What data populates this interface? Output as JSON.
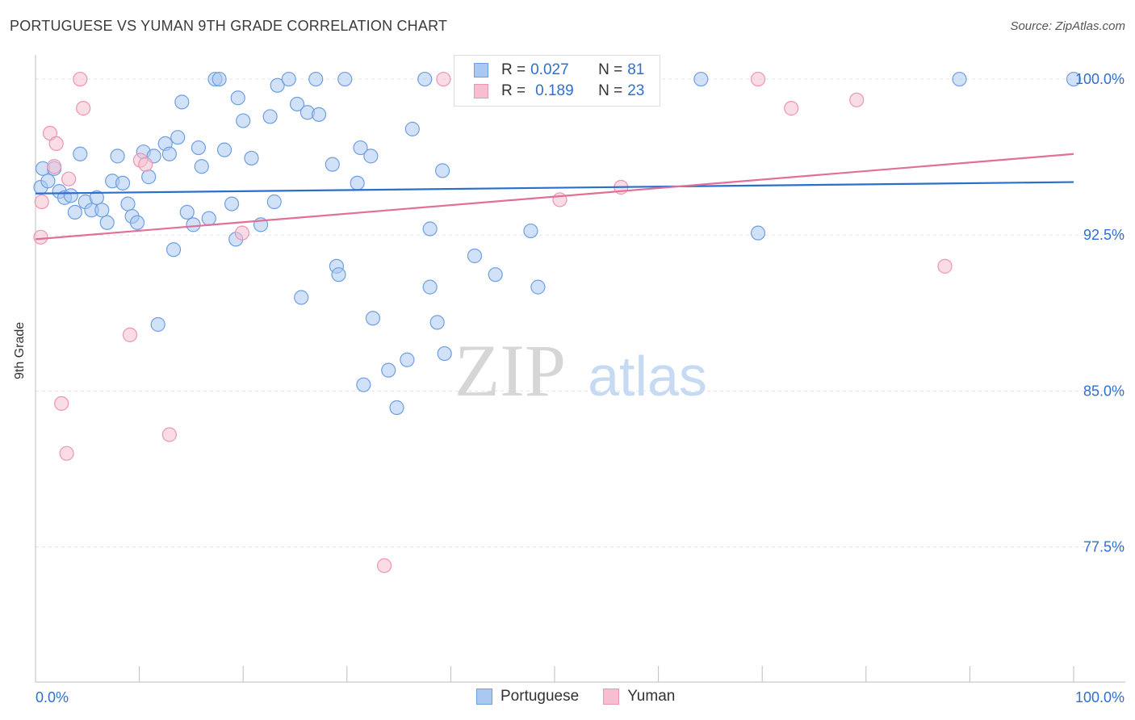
{
  "header": {
    "title": "PORTUGUESE VS YUMAN 9TH GRADE CORRELATION CHART",
    "source": "Source: ZipAtlas.com"
  },
  "watermark": {
    "zip": "ZIP",
    "atlas": "atlas"
  },
  "legend": {
    "rows": [
      {
        "r_label": "R =",
        "r_value": "0.027",
        "n_label": "N =",
        "n_value": "81"
      },
      {
        "r_label": "R =",
        "r_value": "0.189",
        "n_label": "N =",
        "n_value": "23"
      }
    ]
  },
  "bottom_legend": {
    "portuguese": "Portuguese",
    "yuman": "Yuman"
  },
  "colors": {
    "blue_fill": "#a9c8f2",
    "blue_stroke": "#6f9fe0",
    "blue_line": "#2a6fcc",
    "pink_fill": "#f6bfd0",
    "pink_stroke": "#ec95b3",
    "pink_line": "#e07099",
    "tick_label": "#2f6fd0",
    "grid": "#e3e3e3"
  },
  "chart_data": {
    "type": "scatter",
    "title": "PORTUGUESE VS YUMAN 9TH GRADE CORRELATION CHART",
    "ylabel": "9th Grade",
    "xlabel": "",
    "xlim": [
      0,
      100
    ],
    "ylim": [
      71.0,
      101.4
    ],
    "x_tick_labels": [
      "0.0%",
      "100.0%"
    ],
    "y_ticks": [
      77.5,
      85.0,
      92.5,
      100.0
    ],
    "y_tick_labels": [
      "77.5%",
      "85.0%",
      "92.5%",
      "100.0%"
    ],
    "grid": true,
    "series": [
      {
        "name": "Portuguese",
        "R": 0.027,
        "N": 81,
        "trend": {
          "x": [
            0,
            100
          ],
          "y": [
            94.5,
            95.05
          ]
        },
        "points": [
          [
            0.7,
            95.7
          ],
          [
            0.5,
            94.8
          ],
          [
            1.2,
            95.1
          ],
          [
            1.8,
            95.7
          ],
          [
            2.3,
            94.6
          ],
          [
            2.8,
            94.3
          ],
          [
            3.4,
            94.4
          ],
          [
            3.8,
            93.6
          ],
          [
            4.3,
            96.4
          ],
          [
            4.8,
            94.1
          ],
          [
            5.4,
            93.7
          ],
          [
            5.9,
            94.3
          ],
          [
            6.4,
            93.7
          ],
          [
            6.9,
            93.1
          ],
          [
            7.4,
            95.1
          ],
          [
            7.9,
            96.3
          ],
          [
            8.4,
            95.0
          ],
          [
            8.9,
            94.0
          ],
          [
            9.3,
            93.4
          ],
          [
            9.8,
            93.1
          ],
          [
            10.4,
            96.5
          ],
          [
            10.9,
            95.3
          ],
          [
            11.4,
            96.3
          ],
          [
            11.8,
            88.2
          ],
          [
            12.5,
            96.9
          ],
          [
            12.9,
            96.4
          ],
          [
            13.3,
            91.8
          ],
          [
            13.7,
            97.2
          ],
          [
            14.1,
            98.9
          ],
          [
            14.6,
            93.6
          ],
          [
            15.2,
            93.0
          ],
          [
            15.7,
            96.7
          ],
          [
            16.0,
            95.8
          ],
          [
            16.7,
            93.3
          ],
          [
            17.3,
            100.0
          ],
          [
            17.7,
            100.0
          ],
          [
            18.2,
            96.6
          ],
          [
            18.9,
            94.0
          ],
          [
            19.3,
            92.3
          ],
          [
            19.5,
            99.1
          ],
          [
            20.0,
            98.0
          ],
          [
            20.8,
            96.2
          ],
          [
            21.7,
            93.0
          ],
          [
            22.6,
            98.2
          ],
          [
            23.0,
            94.1
          ],
          [
            23.3,
            99.7
          ],
          [
            24.4,
            100.0
          ],
          [
            25.2,
            98.8
          ],
          [
            25.6,
            89.5
          ],
          [
            26.2,
            98.4
          ],
          [
            27.0,
            100.0
          ],
          [
            27.3,
            98.3
          ],
          [
            28.6,
            95.9
          ],
          [
            29.0,
            91.0
          ],
          [
            29.2,
            90.6
          ],
          [
            29.8,
            100.0
          ],
          [
            31.0,
            95.0
          ],
          [
            31.3,
            96.7
          ],
          [
            31.6,
            85.3
          ],
          [
            32.3,
            96.3
          ],
          [
            32.5,
            88.5
          ],
          [
            34.0,
            86.0
          ],
          [
            34.8,
            84.2
          ],
          [
            35.8,
            86.5
          ],
          [
            36.3,
            97.6
          ],
          [
            37.5,
            100.0
          ],
          [
            38.0,
            92.8
          ],
          [
            38.0,
            90.0
          ],
          [
            38.7,
            88.3
          ],
          [
            39.2,
            95.6
          ],
          [
            39.4,
            86.8
          ],
          [
            42.3,
            91.5
          ],
          [
            43.5,
            100.0
          ],
          [
            44.3,
            90.6
          ],
          [
            47.7,
            92.7
          ],
          [
            48.4,
            90.0
          ],
          [
            64.1,
            100.0
          ],
          [
            69.6,
            92.6
          ],
          [
            89.0,
            100.0
          ],
          [
            100.0,
            100.0
          ]
        ]
      },
      {
        "name": "Yuman",
        "R": 0.189,
        "N": 23,
        "trend": {
          "x": [
            0,
            100
          ],
          "y": [
            92.3,
            96.4
          ]
        },
        "points": [
          [
            0.5,
            92.4
          ],
          [
            0.6,
            94.1
          ],
          [
            1.4,
            97.4
          ],
          [
            1.8,
            95.8
          ],
          [
            2.0,
            96.9
          ],
          [
            2.5,
            84.4
          ],
          [
            3.0,
            82.0
          ],
          [
            3.2,
            95.2
          ],
          [
            4.3,
            100.0
          ],
          [
            4.6,
            98.6
          ],
          [
            9.1,
            87.7
          ],
          [
            10.1,
            96.1
          ],
          [
            10.6,
            95.9
          ],
          [
            12.9,
            82.9
          ],
          [
            19.9,
            92.6
          ],
          [
            33.6,
            76.6
          ],
          [
            39.3,
            100.0
          ],
          [
            50.5,
            94.2
          ],
          [
            56.4,
            94.8
          ],
          [
            69.6,
            100.0
          ],
          [
            72.8,
            98.6
          ],
          [
            79.1,
            99.0
          ],
          [
            87.6,
            91.0
          ]
        ]
      }
    ]
  }
}
